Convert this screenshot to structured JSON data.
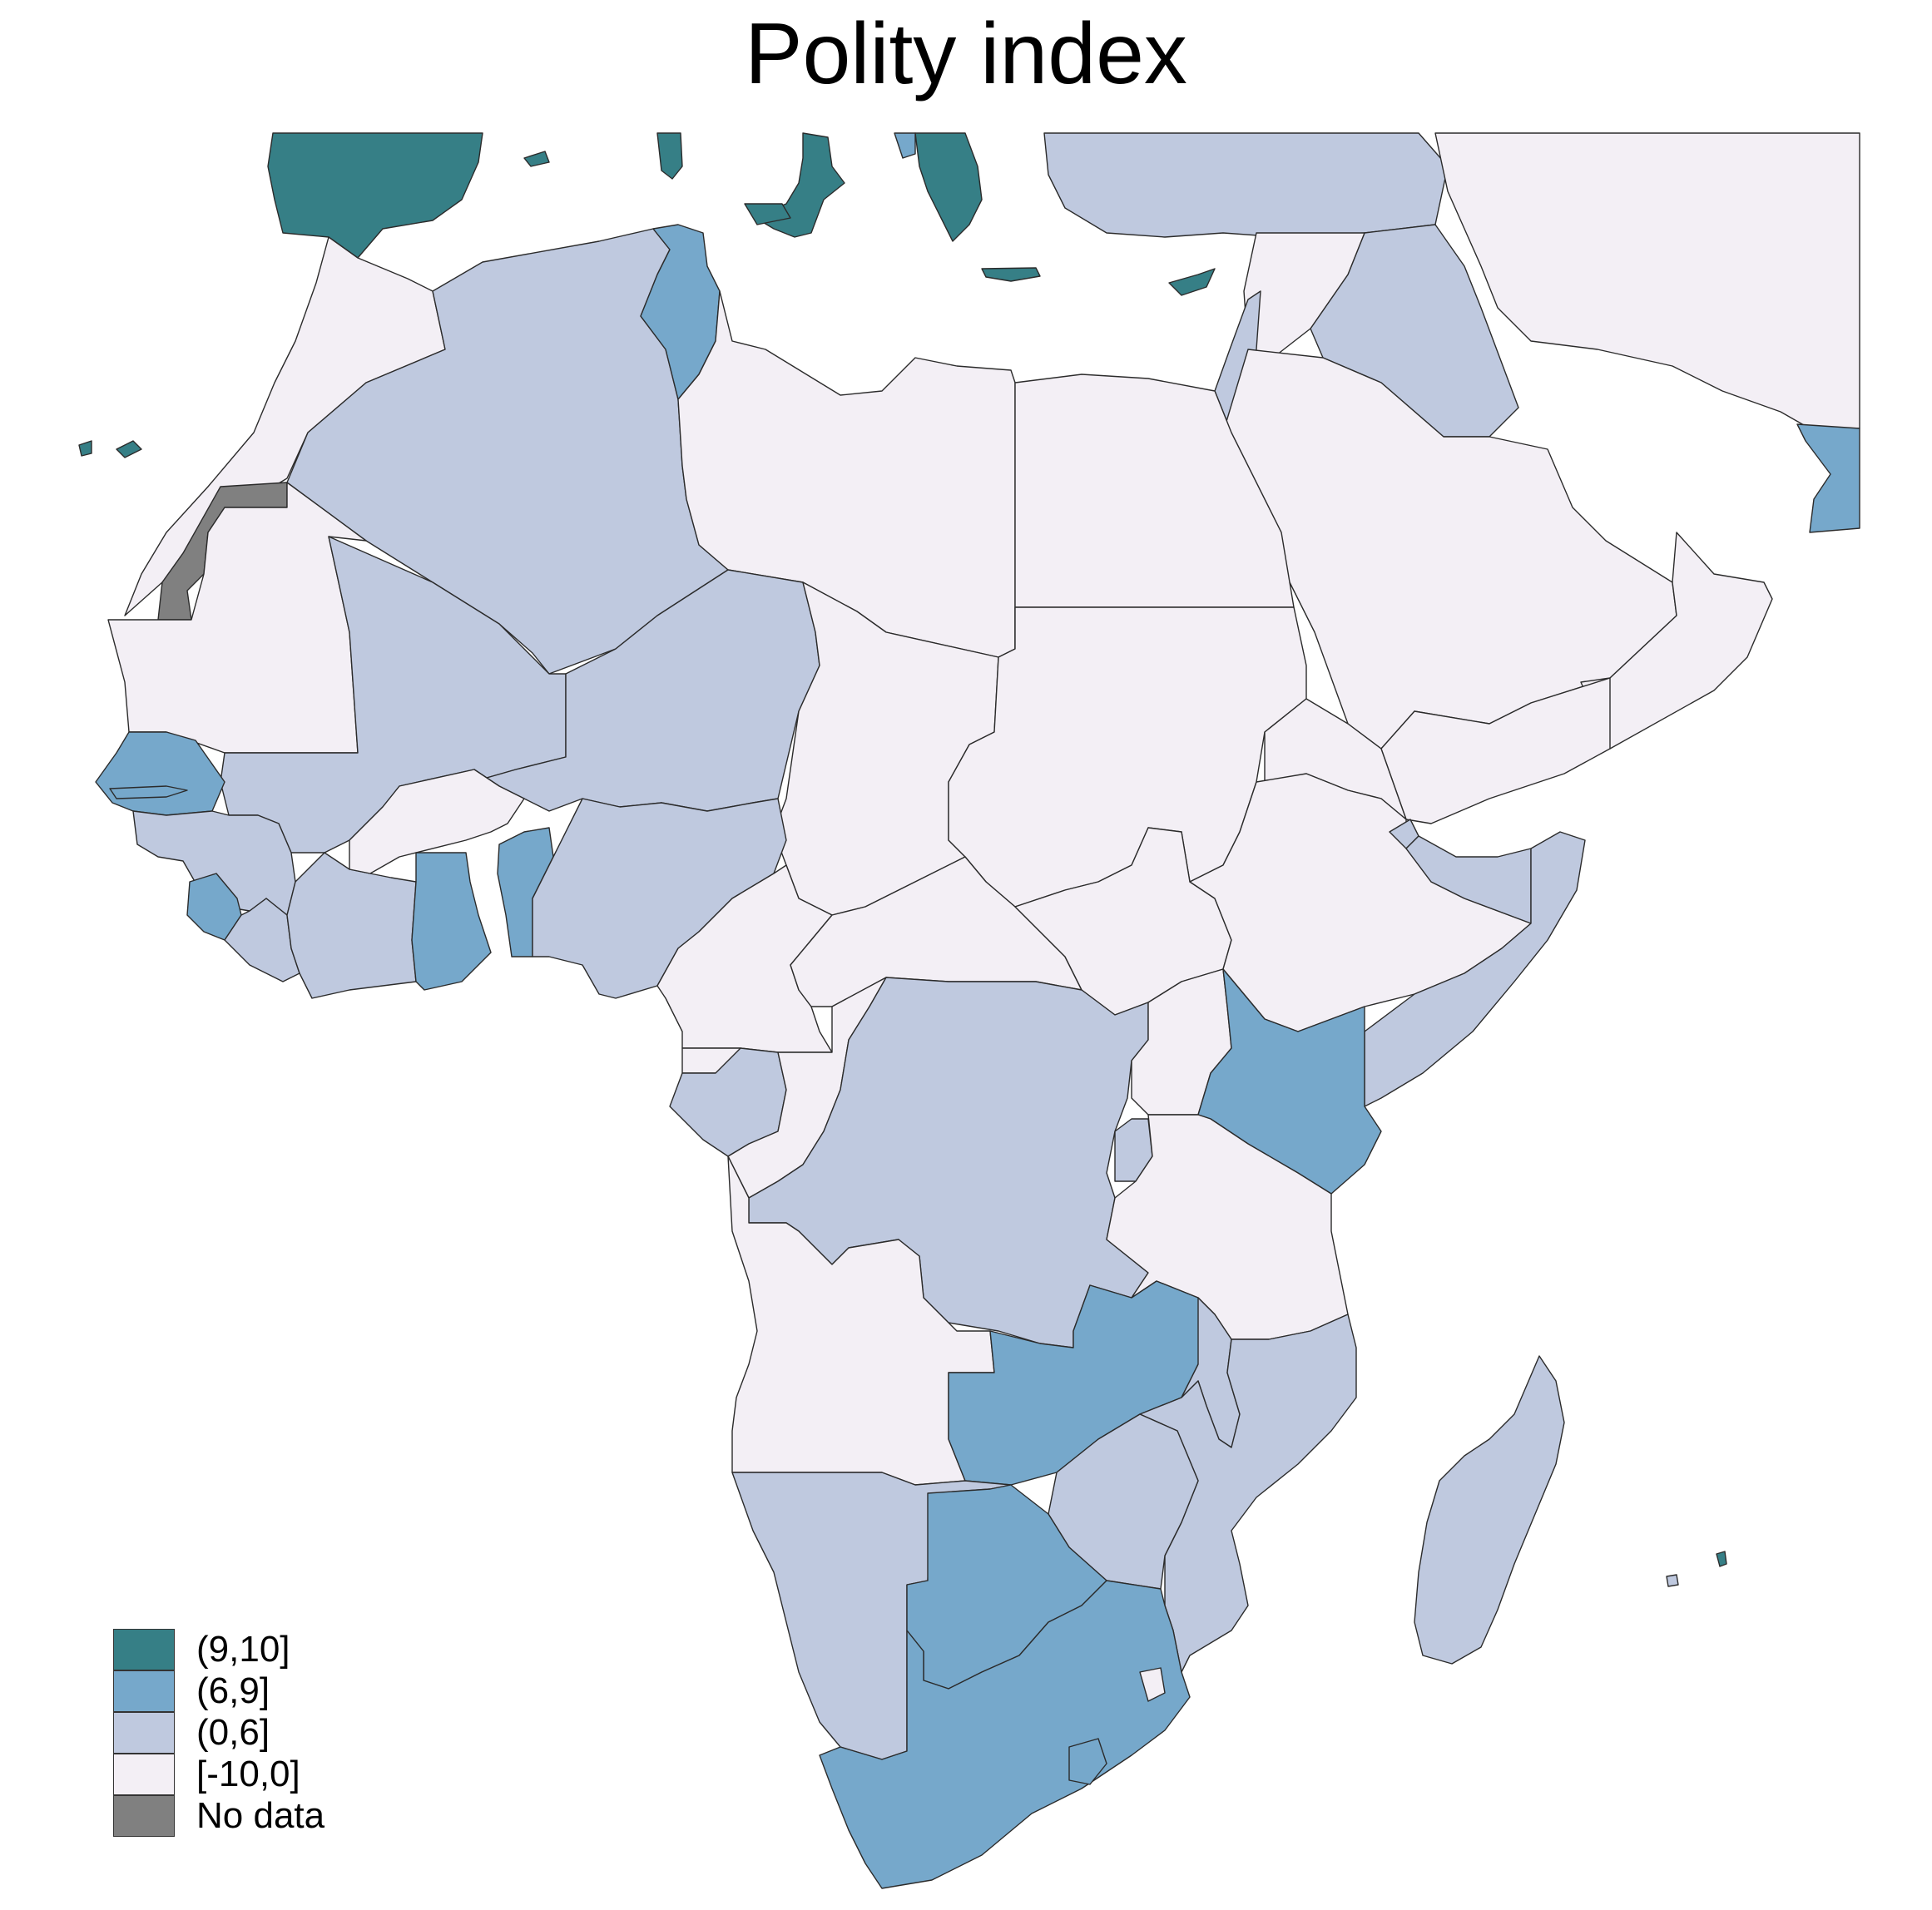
{
  "title": "Polity index",
  "legend": [
    {
      "label": "(9,10]",
      "color": "#367f86"
    },
    {
      "label": "(6,9]",
      "color": "#76a8cb"
    },
    {
      "label": "(0,6]",
      "color": "#bfc9df"
    },
    {
      "label": "[-10,0]",
      "color": "#f3eff5"
    },
    {
      "label": "No data",
      "color": "#808080"
    }
  ],
  "map": {
    "border_color": "#2b2b2b",
    "sea_color": "#ffffff"
  }
}
